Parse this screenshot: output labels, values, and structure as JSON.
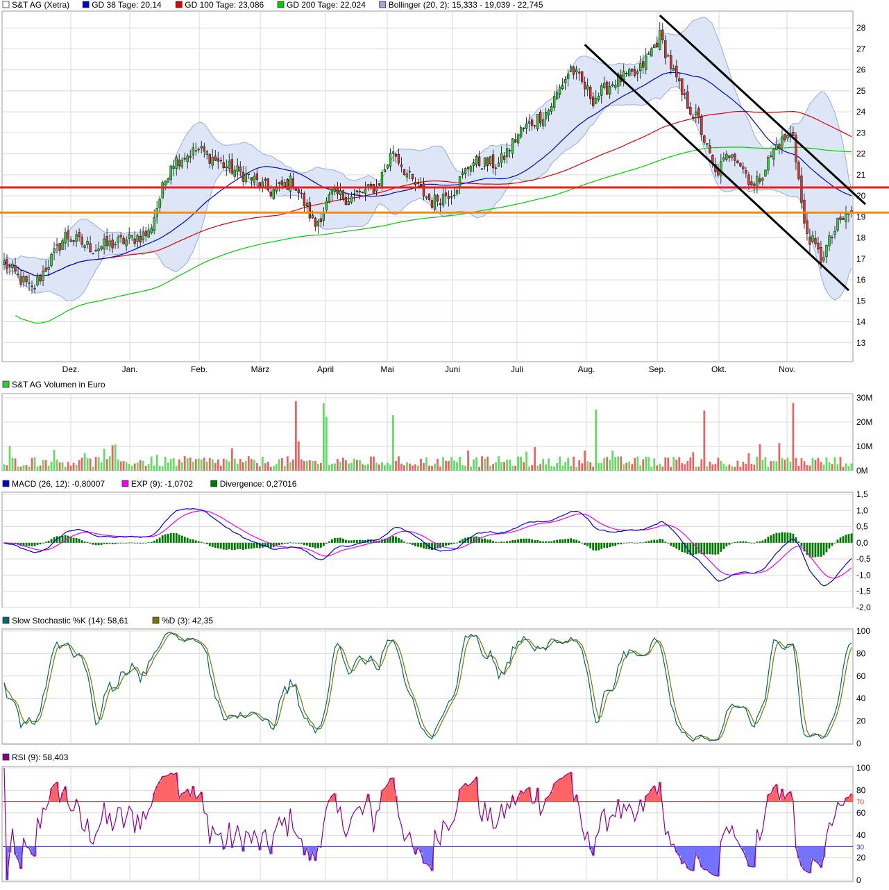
{
  "colors": {
    "up": "#33cc33",
    "down": "#dd3333",
    "gd38": "#0000cc",
    "gd100": "#dd0000",
    "gd200": "#00cc00",
    "bollinger_fill": "#dde6f6",
    "bollinger_line": "#99aad8",
    "support_red": "#dd2222",
    "support_orange": "#ff8800",
    "channel": "#000000",
    "macd": "#0000cc",
    "exp": "#ee00ee",
    "divergence": "#007700",
    "stoch_k": "#006666",
    "stoch_d": "#777700",
    "rsi": "#880088",
    "rsi70": "#dd3333",
    "rsi30": "#3333cc"
  },
  "months": [
    "Dez.",
    "Jan.",
    "Feb.",
    "März",
    "April",
    "Mai",
    "Juni",
    "Juli",
    "Aug.",
    "Sep.",
    "Okt.",
    "Nov."
  ],
  "price_panel": {
    "legend": [
      {
        "label": "S&T AG (Xetra)",
        "swatch": "#ffffff"
      },
      {
        "label": "GD 38 Tage: 20,14",
        "swatch": "#0000cc"
      },
      {
        "label": "GD 100 Tage: 23,086",
        "swatch": "#dd0000"
      },
      {
        "label": "GD 200 Tage: 22,024",
        "swatch": "#00cc00"
      },
      {
        "label": "Bollinger (20, 2): 15,333 - 19,039 - 22,745",
        "swatch": "#99aad8"
      }
    ],
    "y_ticks": [
      "13",
      "14",
      "15",
      "16",
      "17",
      "18",
      "19",
      "20",
      "21",
      "22",
      "23",
      "24",
      "25",
      "26",
      "27",
      "28"
    ],
    "levels": [
      20.4,
      19.2
    ]
  },
  "volume_panel": {
    "legend": [
      {
        "label": "S&T AG Volumen in Euro",
        "swatch": "#33cc33"
      }
    ],
    "y_ticks": [
      "0M",
      "10M",
      "20M",
      "30M"
    ]
  },
  "macd_panel": {
    "legend": [
      {
        "label": "MACD (26, 12): -0,80007",
        "swatch": "#0000cc"
      },
      {
        "label": "EXP (9): -1,0702",
        "swatch": "#ee00ee"
      },
      {
        "label": "Divergence: 0,27016",
        "swatch": "#007700"
      }
    ],
    "y_ticks": [
      "1,5",
      "1,0",
      "0,5",
      "0,0",
      "-0,5",
      "-1,0",
      "-1,5",
      "-2,0"
    ]
  },
  "stoch_panel": {
    "legend": [
      {
        "label": "Slow Stochastic %K (14): 58,61",
        "swatch": "#006666"
      },
      {
        "label": "%D (3): 42,35",
        "swatch": "#777700"
      }
    ],
    "y_ticks": [
      "0",
      "20",
      "40",
      "60",
      "80",
      "100"
    ]
  },
  "rsi_panel": {
    "legend": [
      {
        "label": "RSI (9): 58,403",
        "swatch": "#880088"
      }
    ],
    "y_ticks": [
      "0",
      "20",
      "40",
      "60",
      "80",
      "100"
    ],
    "marker_labels": [
      "70",
      "30"
    ]
  },
  "chart_data": {
    "type": "candlestick",
    "series": [
      {
        "name": "S&T AG (Xetra)",
        "months": [
          "Dez.",
          "Jan.",
          "Feb.",
          "März",
          "April",
          "Mai",
          "Juni",
          "Juli",
          "Aug.",
          "Sep.",
          "Okt.",
          "Nov."
        ],
        "close_anchors": [
          [
            0,
            16.8
          ],
          [
            10,
            15.5
          ],
          [
            22,
            18.1
          ],
          [
            32,
            17.5
          ],
          [
            42,
            17.8
          ],
          [
            52,
            18.2
          ],
          [
            60,
            21.6
          ],
          [
            70,
            22.2
          ],
          [
            80,
            21.4
          ],
          [
            88,
            20.9
          ],
          [
            96,
            20.2
          ],
          [
            104,
            20.7
          ],
          [
            112,
            18.6
          ],
          [
            118,
            20.1
          ],
          [
            124,
            19.9
          ],
          [
            134,
            20.4
          ],
          [
            140,
            22.2
          ],
          [
            146,
            20.8
          ],
          [
            154,
            19.7
          ],
          [
            162,
            20.3
          ],
          [
            168,
            21.6
          ],
          [
            178,
            21.5
          ],
          [
            186,
            23.1
          ],
          [
            196,
            24.1
          ],
          [
            204,
            26.1
          ],
          [
            212,
            24.6
          ],
          [
            220,
            25.5
          ],
          [
            228,
            25.8
          ],
          [
            236,
            27.6
          ],
          [
            244,
            24.8
          ],
          [
            250,
            23.5
          ],
          [
            256,
            21.0
          ],
          [
            262,
            22.2
          ],
          [
            270,
            20.4
          ],
          [
            278,
            22.4
          ],
          [
            284,
            23.0
          ],
          [
            288,
            18.5
          ],
          [
            294,
            17.0
          ],
          [
            300,
            18.6
          ],
          [
            305,
            19.3
          ]
        ]
      },
      {
        "name": "GD 38 Tage",
        "last": 20.14
      },
      {
        "name": "GD 100 Tage",
        "last": 23.086
      },
      {
        "name": "GD 200 Tage",
        "last": 22.024
      },
      {
        "name": "Bollinger (20, 2)",
        "lower": 15.333,
        "middle": 19.039,
        "upper": 22.745
      },
      {
        "name": "MACD (26, 12)",
        "last": -0.80007
      },
      {
        "name": "EXP (9)",
        "last": -1.0702
      },
      {
        "name": "Divergence",
        "last": 0.27016
      },
      {
        "name": "Slow Stochastic %K (14)",
        "last": 58.61
      },
      {
        "name": "%D (3)",
        "last": 42.35
      },
      {
        "name": "RSI (9)",
        "last": 58.403
      }
    ],
    "ylim_price": [
      12.1,
      28.8
    ],
    "ylim_volume": [
      0,
      30
    ],
    "ylim_macd": [
      -2.0,
      1.5
    ],
    "ylim_stoch": [
      0,
      100
    ],
    "ylim_rsi": [
      0,
      100
    ],
    "grid": true,
    "legend": "top-left"
  }
}
